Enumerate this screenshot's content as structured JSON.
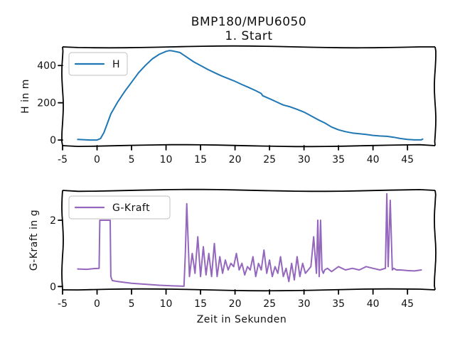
{
  "figure": {
    "title_line1": "BMP180/MPU6050",
    "title_line2": "1. Start"
  },
  "chart_data": [
    {
      "type": "line",
      "xlabel": "",
      "ylabel": "H in m",
      "xlim": [
        -5.0,
        49.0
      ],
      "ylim": [
        -30,
        500
      ],
      "xticks": [
        -5,
        0,
        5,
        10,
        15,
        20,
        25,
        30,
        35,
        40,
        45
      ],
      "yticks": [
        0,
        200,
        400
      ],
      "legend": "top-left",
      "grid": false,
      "series": [
        {
          "name": "H",
          "color": "#1f77b4",
          "x": [
            -2.8,
            -1,
            0,
            0.5,
            1,
            1.5,
            2,
            3,
            4,
            5,
            6,
            7,
            8,
            9,
            10,
            10.5,
            11,
            12,
            13,
            14,
            15,
            16,
            17,
            18,
            19,
            20,
            21,
            22,
            23,
            23.8,
            24,
            25,
            26,
            27,
            28,
            29,
            30,
            31,
            32,
            33,
            34,
            35,
            36,
            37,
            38,
            39,
            40,
            41,
            42,
            43,
            44,
            45,
            46,
            47,
            47.2
          ],
          "y": [
            3,
            0,
            0,
            8,
            40,
            90,
            140,
            205,
            260,
            310,
            360,
            400,
            435,
            460,
            476,
            480,
            478,
            470,
            445,
            420,
            400,
            380,
            362,
            345,
            330,
            315,
            298,
            282,
            265,
            250,
            238,
            222,
            205,
            188,
            178,
            165,
            150,
            130,
            110,
            92,
            70,
            55,
            45,
            38,
            34,
            30,
            25,
            22,
            20,
            15,
            8,
            3,
            1,
            1,
            5
          ]
        }
      ]
    },
    {
      "type": "line",
      "xlabel": "Zeit in Sekunden",
      "ylabel": "G-Kraft in g",
      "xlim": [
        -5.0,
        49.0
      ],
      "ylim": [
        -0.1,
        2.9
      ],
      "xticks": [
        -5,
        0,
        5,
        10,
        15,
        20,
        25,
        30,
        35,
        40,
        45
      ],
      "yticks": [
        0,
        2
      ],
      "legend": "top-left",
      "grid": false,
      "series": [
        {
          "name": "G-Kraft",
          "color": "#9467bd",
          "x": [
            -2.8,
            -1.5,
            -0.5,
            0.3,
            0.4,
            1.9,
            2.0,
            2.2,
            3,
            5,
            7,
            9,
            11,
            12.6,
            12.8,
            13.0,
            13.4,
            13.8,
            14.2,
            14.6,
            15.0,
            15.4,
            15.8,
            16.2,
            16.6,
            17.0,
            17.4,
            17.8,
            18.2,
            18.6,
            19.0,
            19.4,
            19.8,
            20.2,
            20.6,
            21.0,
            21.4,
            21.8,
            22.2,
            22.6,
            23.0,
            23.4,
            23.8,
            24.2,
            24.6,
            25.0,
            25.4,
            25.8,
            26.2,
            26.6,
            27.0,
            27.4,
            27.8,
            28.2,
            28.6,
            29.0,
            29.4,
            29.8,
            30.2,
            30.6,
            31.0,
            31.4,
            31.8,
            32.0,
            32.2,
            32.4,
            32.6,
            32.8,
            33.0,
            33.4,
            34.0,
            35.0,
            36.0,
            37.0,
            38.0,
            39.0,
            40.0,
            41.0,
            41.8,
            42.0,
            42.2,
            42.5,
            42.8,
            43.0,
            43.4,
            44.0,
            45.0,
            46.0,
            47.0
          ],
          "y": [
            0.53,
            0.52,
            0.54,
            0.55,
            2.0,
            2.0,
            0.3,
            0.18,
            0.15,
            0.1,
            0.07,
            0.04,
            0.02,
            0.01,
            1.0,
            2.5,
            0.3,
            1.0,
            0.4,
            1.5,
            0.3,
            1.2,
            0.35,
            1.0,
            0.3,
            1.3,
            0.3,
            0.9,
            0.4,
            0.8,
            0.5,
            0.7,
            0.6,
            1.0,
            0.5,
            0.7,
            0.35,
            0.6,
            0.5,
            0.9,
            0.3,
            0.7,
            0.5,
            1.1,
            0.4,
            0.8,
            0.3,
            0.6,
            0.4,
            0.9,
            0.3,
            0.55,
            0.15,
            0.7,
            0.2,
            0.9,
            0.3,
            0.7,
            0.4,
            0.5,
            0.6,
            1.5,
            0.4,
            2.0,
            0.3,
            2.0,
            0.5,
            0.4,
            0.5,
            0.55,
            0.45,
            0.6,
            0.5,
            0.55,
            0.5,
            0.6,
            0.55,
            0.5,
            0.55,
            2.8,
            0.6,
            2.6,
            0.5,
            0.55,
            0.5,
            0.5,
            0.48,
            0.47,
            0.5
          ]
        }
      ]
    }
  ]
}
